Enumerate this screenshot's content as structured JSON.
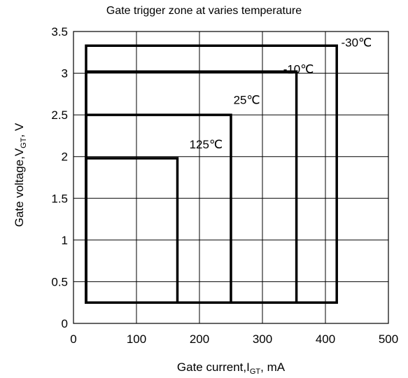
{
  "chart_data": {
    "type": "line",
    "title": "Gate trigger zone at varies temperature",
    "xlabel": "Gate current,IGT,  mA",
    "xlabel_main": "Gate current,I",
    "xlabel_sub": "GT",
    "xlabel_tail": ",  mA",
    "ylabel": "Gate voltage,VGT,  V",
    "ylabel_main": "Gate voltage,V",
    "ylabel_sub": "GT",
    "ylabel_tail": ",  V",
    "xlim": [
      0,
      500
    ],
    "ylim": [
      0,
      3.5
    ],
    "x_ticks": [
      0,
      100,
      200,
      300,
      400,
      500
    ],
    "y_ticks": [
      0,
      0.5,
      1,
      1.5,
      2,
      2.5,
      3,
      3.5
    ],
    "x_tick_labels": [
      "0",
      "100",
      "200",
      "300",
      "400",
      "500"
    ],
    "y_tick_labels": [
      "0",
      "0.5",
      "1",
      "1.5",
      "2",
      "2.5",
      "3",
      "3.5"
    ],
    "grid": true,
    "legend": "none",
    "series": [
      {
        "name": "-30℃",
        "x": [
          20,
          20,
          418,
          418,
          20
        ],
        "y": [
          0.25,
          3.33,
          3.33,
          0.25,
          0.25
        ]
      },
      {
        "name": "-10℃",
        "x": [
          20,
          20,
          354,
          354
        ],
        "y": [
          0.25,
          3.02,
          3.02,
          0.25
        ]
      },
      {
        "name": "25℃",
        "x": [
          20,
          20,
          250,
          250
        ],
        "y": [
          0.25,
          2.5,
          2.5,
          0.25
        ]
      },
      {
        "name": "125℃",
        "x": [
          20,
          20,
          165,
          165
        ],
        "y": [
          0.25,
          1.98,
          1.98,
          0.25
        ]
      }
    ],
    "annotations": [
      {
        "text": "-30℃",
        "x": 425,
        "y": 3.32
      },
      {
        "text": "-10℃",
        "x": 333,
        "y": 3.0
      },
      {
        "text": "25℃",
        "x": 254,
        "y": 2.63
      },
      {
        "text": "125℃",
        "x": 184,
        "y": 2.1
      }
    ]
  }
}
